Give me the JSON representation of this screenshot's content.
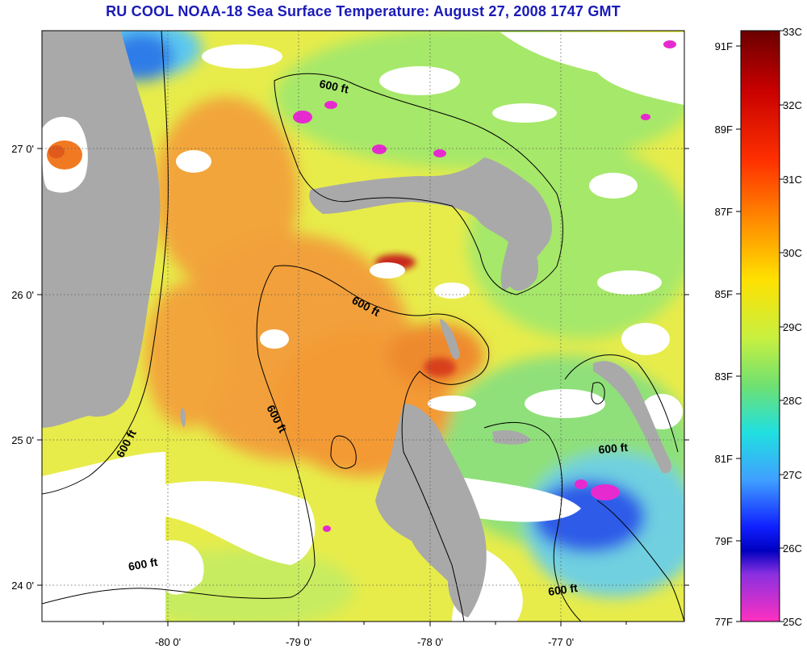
{
  "title": "RU COOL  NOAA-18  Sea Surface Temperature:  August 27, 2008 1747 GMT",
  "map": {
    "lon_ticks": [
      "-80 0'",
      "-79 0'",
      "-78 0'",
      "-77 0'"
    ],
    "lat_ticks": [
      "27 0'",
      "26 0'",
      "25 0'",
      "24 0'"
    ],
    "contour_label": "600 ft",
    "colors": {
      "land": "#a9a9a9",
      "cloud": "#ffffff",
      "warm": "#f2a030",
      "mid": "#f5e04a",
      "cool": "#7fe07a",
      "cold": "#3a7cf0",
      "coldest": "#2222cc",
      "hot": "#c81a1a"
    }
  },
  "colorbar": {
    "celsius": [
      "33C",
      "32C",
      "31C",
      "30C",
      "29C",
      "28C",
      "27C",
      "26C",
      "25C"
    ],
    "fahrenheit": [
      "91F",
      "89F",
      "87F",
      "85F",
      "83F",
      "81F",
      "79F",
      "77F"
    ]
  }
}
